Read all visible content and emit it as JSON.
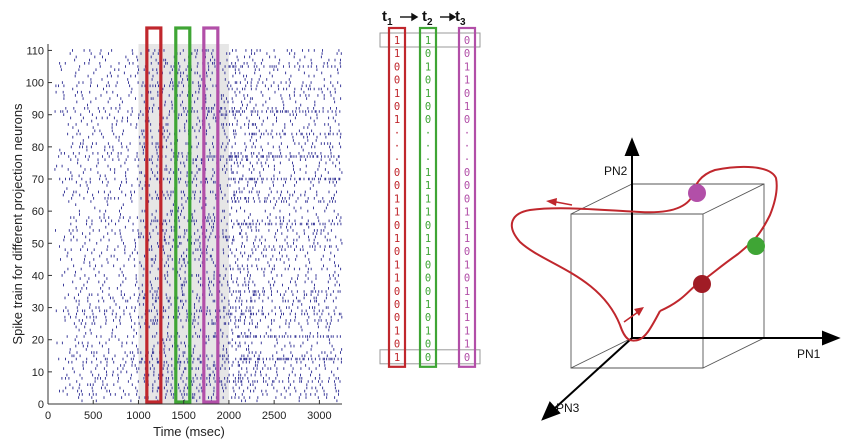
{
  "raster": {
    "ylabel": "Spike train for different projection neurons",
    "xlabel": "Time (msec)",
    "xticks": [
      "0",
      "500",
      "1000",
      "1500",
      "2000",
      "2500",
      "3000"
    ],
    "yticks": [
      "0",
      "10",
      "20",
      "30",
      "40",
      "50",
      "60",
      "70",
      "80",
      "90",
      "100",
      "110"
    ],
    "xlim": [
      0,
      3250
    ],
    "ylim": [
      0,
      112
    ],
    "stimulus_window_ms": [
      1000,
      2000
    ],
    "time_windows": [
      {
        "name": "t1",
        "center_ms": 1170,
        "color": "#c0272d"
      },
      {
        "name": "t2",
        "center_ms": 1490,
        "color": "#3fa535"
      },
      {
        "name": "t3",
        "center_ms": 1800,
        "color": "#b24fa8"
      }
    ],
    "spike_color": "#3b3b9a"
  },
  "binary_vectors": {
    "header": {
      "t1": "t",
      "t1_sub": "1",
      "t2": "t",
      "t2_sub": "2",
      "t3": "t",
      "t3_sub": "3"
    },
    "columns": [
      {
        "name": "t1",
        "color": "#c0272d",
        "top": [
          "1",
          "1",
          "0",
          "0",
          "1",
          "0",
          "1"
        ],
        "dots": [
          "·",
          "·",
          "·"
        ],
        "bottom": [
          "0",
          "0",
          "1",
          "1",
          "0",
          "1",
          "0",
          "1",
          "1",
          "0",
          "0",
          "0",
          "1",
          "0"
        ],
        "last": "1"
      },
      {
        "name": "t2",
        "color": "#3fa535",
        "top": [
          "1",
          "0",
          "1",
          "0",
          "1",
          "0",
          "0"
        ],
        "dots": [
          "·",
          "·",
          "·"
        ],
        "bottom": [
          "1",
          "1",
          "1",
          "1",
          "0",
          "1",
          "1",
          "0",
          "0",
          "0",
          "1",
          "0",
          "1",
          "0"
        ],
        "last": "0"
      },
      {
        "name": "t3",
        "color": "#b24fa8",
        "top": [
          "0",
          "0",
          "1",
          "1",
          "0",
          "1",
          "0"
        ],
        "dots": [
          "·",
          "·",
          "·"
        ],
        "bottom": [
          "0",
          "0",
          "0",
          "1",
          "1",
          "1",
          "0",
          "1",
          "0",
          "1",
          "1",
          "1",
          "1",
          "1"
        ],
        "last": "0"
      }
    ]
  },
  "state_space": {
    "axes": {
      "x": "PN1",
      "y": "PN2",
      "z": "PN3"
    },
    "trajectory_color": "#c0272d",
    "points": [
      {
        "name": "t1",
        "color": "#a01c25"
      },
      {
        "name": "t2",
        "color": "#3fa535"
      },
      {
        "name": "t3",
        "color": "#b24fa8"
      }
    ]
  }
}
